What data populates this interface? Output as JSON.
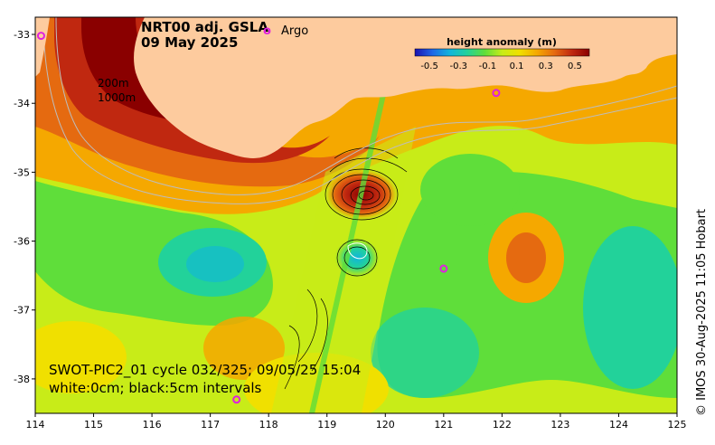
{
  "title": {
    "line1": "NRT00 adj. GSLA",
    "line2": "09 May 2025"
  },
  "legend": {
    "argo_symbol": "o",
    "argo_label": "Argo",
    "argo_color": "#e020e0"
  },
  "contour_labels": {
    "shallow": "200m",
    "deep": "1000m"
  },
  "colorbar": {
    "title": "height anomaly (m)",
    "ticks": [
      "-0.5",
      "-0.3",
      "-0.1",
      "0.1",
      "0.3",
      "0.5"
    ],
    "colors": [
      "#1a10b0",
      "#1f66e6",
      "#11b5dc",
      "#22d29a",
      "#5fde3a",
      "#c8ec18",
      "#f0e000",
      "#f5a800",
      "#e56a10",
      "#c02810",
      "#8a0000"
    ]
  },
  "swot": {
    "line1": "SWOT-PIC2_01 cycle 032/325; 09/05/25 15:04",
    "line2": "white:0cm; black:5cm intervals"
  },
  "axes": {
    "x_ticks": [
      "114",
      "115",
      "116",
      "117",
      "118",
      "119",
      "120",
      "121",
      "122",
      "123",
      "124",
      "125"
    ],
    "y_ticks": [
      "-33",
      "-34",
      "-35",
      "-36",
      "-37",
      "-38"
    ]
  },
  "credit": "© IMOS 30-Aug-2025 11:05 Hobart",
  "colors": {
    "land": "#fdcb9e",
    "frame": "#000000"
  },
  "argo_floats": [
    {
      "lon": 121.0,
      "lat": -36.4
    },
    {
      "lon": 117.45,
      "lat": -38.3
    },
    {
      "lon": 114.1,
      "lat": -33.02
    },
    {
      "lon": 121.9,
      "lat": -33.85
    }
  ]
}
